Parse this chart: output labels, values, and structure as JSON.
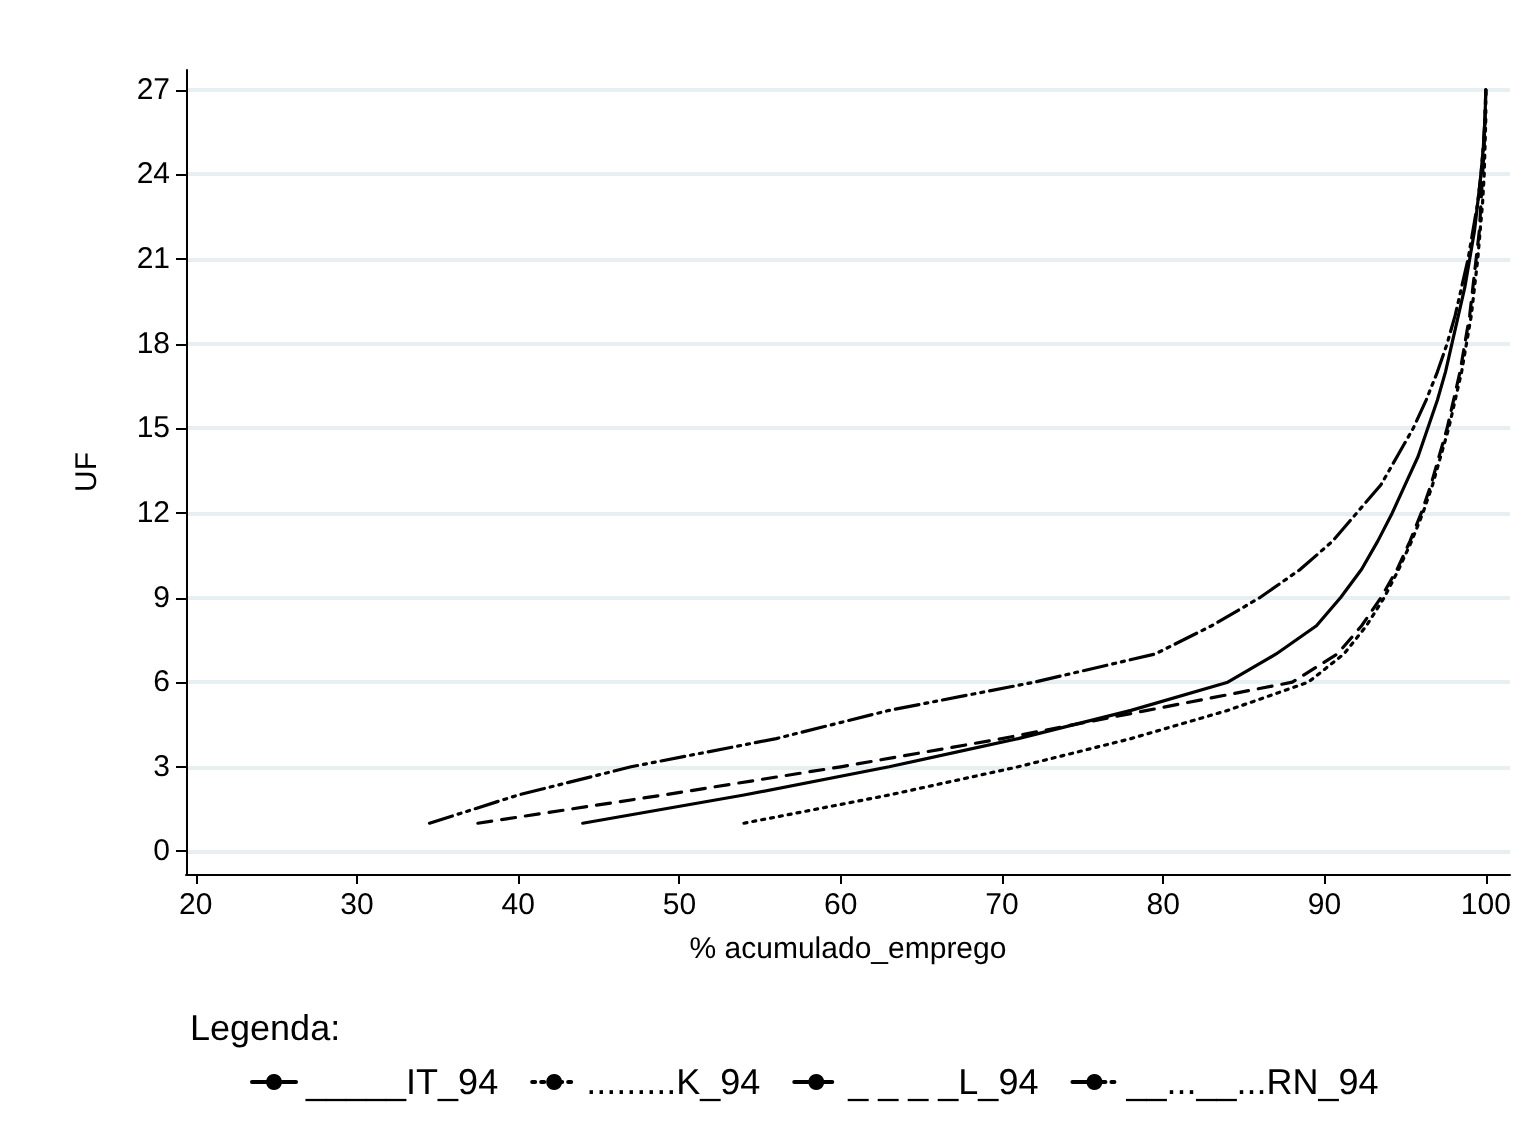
{
  "chart_data": {
    "type": "line",
    "xlabel": "% acumulado_emprego",
    "ylabel": "UF",
    "legend_title": "Legenda:",
    "xlim": [
      19.4,
      101.5
    ],
    "xticks": [
      20,
      30,
      40,
      50,
      60,
      70,
      80,
      90,
      100
    ],
    "ylim": [
      -0.8,
      27.7
    ],
    "yticks": [
      0,
      3,
      6,
      9,
      12,
      15,
      18,
      21,
      24,
      27
    ],
    "grid": "y",
    "legend": "bottom",
    "marker": "none",
    "series": [
      {
        "name": "_____IT_94",
        "color": "#000000",
        "line_style": "solid",
        "x": [
          44,
          54,
          63,
          71,
          78,
          84,
          87,
          89.5,
          91,
          92.3,
          93.3,
          94.2,
          95,
          95.8,
          96.4,
          97,
          97.5,
          97.9,
          98.3,
          98.7,
          99,
          99.3,
          99.5,
          99.7,
          99.85,
          99.95,
          100
        ],
        "values": [
          1,
          2,
          3,
          4,
          5,
          6,
          7,
          8,
          9,
          10,
          11,
          12,
          13,
          14,
          15,
          16,
          17,
          18,
          19,
          20,
          21,
          22,
          23,
          24,
          25,
          26,
          27
        ]
      },
      {
        "name": ".........K_94",
        "color": "#000000",
        "line_style": "dotted",
        "x": [
          54,
          63,
          71,
          78,
          84,
          89,
          91.2,
          92.6,
          93.7,
          94.6,
          95.4,
          96.1,
          96.7,
          97.2,
          97.7,
          98.1,
          98.5,
          98.8,
          99.1,
          99.3,
          99.5,
          99.65,
          99.8,
          99.9,
          99.95,
          100,
          100
        ],
        "values": [
          1,
          2,
          3,
          4,
          5,
          6,
          7,
          8,
          9,
          10,
          11,
          12,
          13,
          14,
          15,
          16,
          17,
          18,
          19,
          20,
          21,
          22,
          23,
          24,
          25,
          26,
          27
        ]
      },
      {
        "name": "_ _ _ _L_94",
        "color": "#000000",
        "line_style": "dashed",
        "x": [
          37.5,
          49,
          60,
          70,
          79,
          88,
          90.8,
          92.3,
          93.5,
          94.5,
          95.3,
          96,
          96.6,
          97.1,
          97.6,
          98,
          98.4,
          98.7,
          99,
          99.2,
          99.4,
          99.6,
          99.7,
          99.8,
          99.9,
          99.95,
          100
        ],
        "values": [
          1,
          2,
          3,
          4,
          5,
          6,
          7,
          8,
          9,
          10,
          11,
          12,
          13,
          14,
          15,
          16,
          17,
          18,
          19,
          20,
          21,
          22,
          23,
          24,
          25,
          26,
          27
        ]
      },
      {
        "name": "__...__...RN_94",
        "color": "#000000",
        "line_style": "dashdot",
        "x": [
          34.5,
          40,
          47,
          56,
          63,
          72,
          79.5,
          83,
          86,
          88.5,
          90.5,
          92,
          93.5,
          94.5,
          95.5,
          96.3,
          97,
          97.6,
          98.1,
          98.5,
          98.9,
          99.2,
          99.5,
          99.7,
          99.85,
          99.95,
          100
        ],
        "values": [
          1,
          2,
          3,
          4,
          5,
          6,
          7,
          8,
          9,
          10,
          11,
          12,
          13,
          14,
          15,
          16,
          17,
          18,
          19,
          20,
          21,
          22,
          23,
          24,
          25,
          26,
          27
        ]
      }
    ]
  }
}
